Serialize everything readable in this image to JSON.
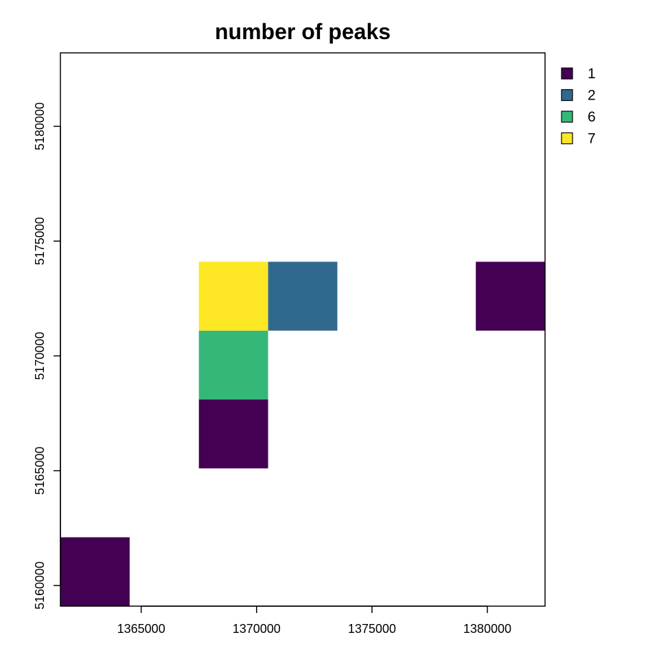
{
  "chart_data": {
    "type": "heatmap",
    "title": "number of peaks",
    "xlabel": "",
    "ylabel": "",
    "xlim": [
      1361500,
      1382500
    ],
    "ylim": [
      5159100,
      5183200
    ],
    "x_ticks": [
      1365000,
      1370000,
      1375000,
      1380000
    ],
    "y_ticks": [
      5160000,
      5165000,
      5170000,
      5175000,
      5180000
    ],
    "x_tick_labels": [
      "1365000",
      "1370000",
      "1375000",
      "1380000"
    ],
    "y_tick_labels": [
      "5160000",
      "5165000",
      "5170000",
      "5175000",
      "5180000"
    ],
    "cell_size": 3000,
    "cells": [
      {
        "x0": 1361500,
        "y0": 5159100,
        "value": 1
      },
      {
        "x0": 1367500,
        "y0": 5165100,
        "value": 1
      },
      {
        "x0": 1367500,
        "y0": 5168100,
        "value": 6
      },
      {
        "x0": 1367500,
        "y0": 5171100,
        "value": 7
      },
      {
        "x0": 1370500,
        "y0": 5171100,
        "value": 2
      },
      {
        "x0": 1379500,
        "y0": 5171100,
        "value": 1
      }
    ],
    "legend": {
      "position": "top-right",
      "entries": [
        {
          "label": "1",
          "value": 1,
          "color": "#440154"
        },
        {
          "label": "2",
          "value": 2,
          "color": "#31688e"
        },
        {
          "label": "6",
          "value": 6,
          "color": "#35b779"
        },
        {
          "label": "7",
          "value": 7,
          "color": "#fde725"
        }
      ]
    },
    "grid": false
  }
}
